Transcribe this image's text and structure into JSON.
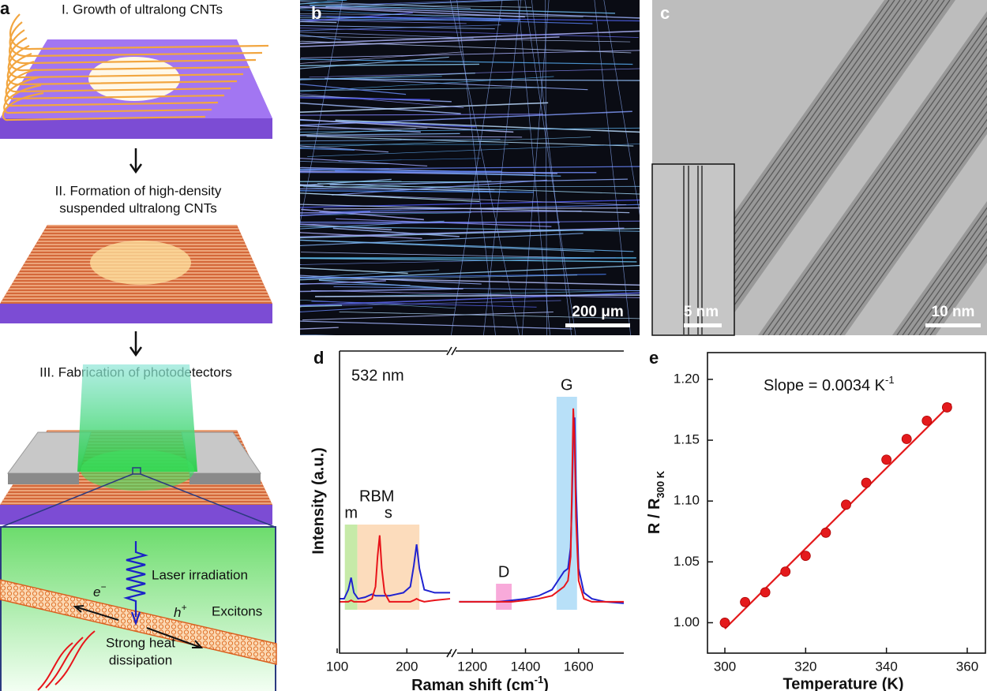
{
  "panel_a": {
    "label": "a",
    "step_1": "I. Growth of ultralong CNTs",
    "step_2": [
      "II. Formation of high-density",
      "suspended ultralong CNTs"
    ],
    "step_3": "III. Fabrication of photodetectors",
    "inset": {
      "laser": "Laser irradiation",
      "electron": [
        "e",
        "−"
      ],
      "hole": [
        "h",
        "+"
      ],
      "excitons": "Excitons",
      "heat": [
        "Strong heat",
        "dissipation"
      ]
    }
  },
  "panel_b": {
    "label": "b",
    "scale": "200 μm"
  },
  "panel_c": {
    "label": "c",
    "scale": "10 nm",
    "inset_scale": "5 nm"
  },
  "chart_data": [
    {
      "type": "line",
      "label": "d",
      "annotations": [
        "532 nm",
        "RBM"
      ],
      "ylabel": "Intensity (a.u.)",
      "xlabel": [
        "Raman shift (cm",
        "-1",
        ")"
      ],
      "ylim": [
        0,
        100
      ],
      "x_segments": [
        {
          "xlim": [
            100,
            262
          ],
          "xticks": [
            100,
            200
          ]
        },
        {
          "xlim": [
            1140,
            1770
          ],
          "xticks": [
            1200,
            1400,
            1600
          ]
        }
      ],
      "x": [
        103,
        110,
        116,
        120,
        124,
        130,
        140,
        150,
        155,
        158,
        161,
        164,
        168,
        175,
        185,
        195,
        205,
        210,
        214,
        218,
        225,
        240,
        262,
        1150,
        1200,
        1250,
        1300,
        1350,
        1400,
        1450,
        1500,
        1530,
        1545,
        1560,
        1570,
        1575,
        1580,
        1585,
        1590,
        1600,
        1620,
        1650,
        1700,
        1770
      ],
      "series": [
        {
          "color": "#1f22d0",
          "values": [
            18,
            18,
            21,
            25,
            20,
            18,
            18.5,
            19.5,
            19,
            19,
            19,
            19,
            19,
            19,
            19.5,
            20,
            22,
            29,
            36,
            28,
            21,
            20,
            20,
            17,
            17,
            17,
            17,
            17.5,
            18,
            19,
            21,
            25,
            27,
            28,
            35,
            50,
            72,
            78,
            55,
            28,
            20,
            18,
            17,
            16.5
          ]
        },
        {
          "color": "#e8141a",
          "values": [
            17,
            17,
            17,
            17.5,
            17,
            17,
            17,
            18,
            22,
            32,
            39,
            28,
            20,
            17,
            17,
            17,
            17,
            17.5,
            18,
            17.5,
            17,
            17.5,
            18,
            17,
            17,
            17,
            17,
            17,
            17.5,
            18,
            19,
            21,
            22,
            24,
            32,
            55,
            81,
            70,
            45,
            24,
            18,
            17,
            17,
            17
          ]
        }
      ],
      "regions": [
        {
          "label": "m",
          "xlim": [
            111,
            129
          ],
          "color": "#c6eaa8"
        },
        {
          "label": "s",
          "xlim": [
            129,
            218
          ],
          "color": "#fcdcbc"
        },
        {
          "label": "D",
          "xlim": [
            1289,
            1348
          ],
          "color": "#f8aada"
        },
        {
          "label": "G",
          "xlim": [
            1517,
            1594
          ],
          "color": "#b8e0f8"
        }
      ]
    },
    {
      "type": "scatter",
      "label": "e",
      "annotation": [
        "Slope = 0.0034 K",
        "-1"
      ],
      "ylabel": [
        "R / R",
        "300 K"
      ],
      "xlabel": "Temperature (K)",
      "x": [
        300,
        305,
        310,
        315,
        320,
        325,
        330,
        335,
        340,
        345,
        350,
        355
      ],
      "series": [
        {
          "color": "#e41a1c",
          "values": [
            1.0,
            1.017,
            1.025,
            1.042,
            1.055,
            1.074,
            1.097,
            1.115,
            1.134,
            1.151,
            1.166,
            1.177
          ]
        }
      ],
      "fit": {
        "x": [
          300,
          356
        ],
        "values": [
          0.995,
          1.18
        ],
        "color": "#e41a1c"
      },
      "xlim": [
        295.7,
        364.5
      ],
      "xticks": [
        300,
        320,
        340,
        360
      ],
      "ylim": [
        0.975,
        1.222
      ],
      "yticks": [
        {
          "value": 1,
          "label": "1.00"
        },
        1.05,
        {
          "value": 1.1,
          "label": "1.10"
        },
        1.15,
        {
          "value": 1.2,
          "label": "1.20"
        }
      ]
    }
  ]
}
